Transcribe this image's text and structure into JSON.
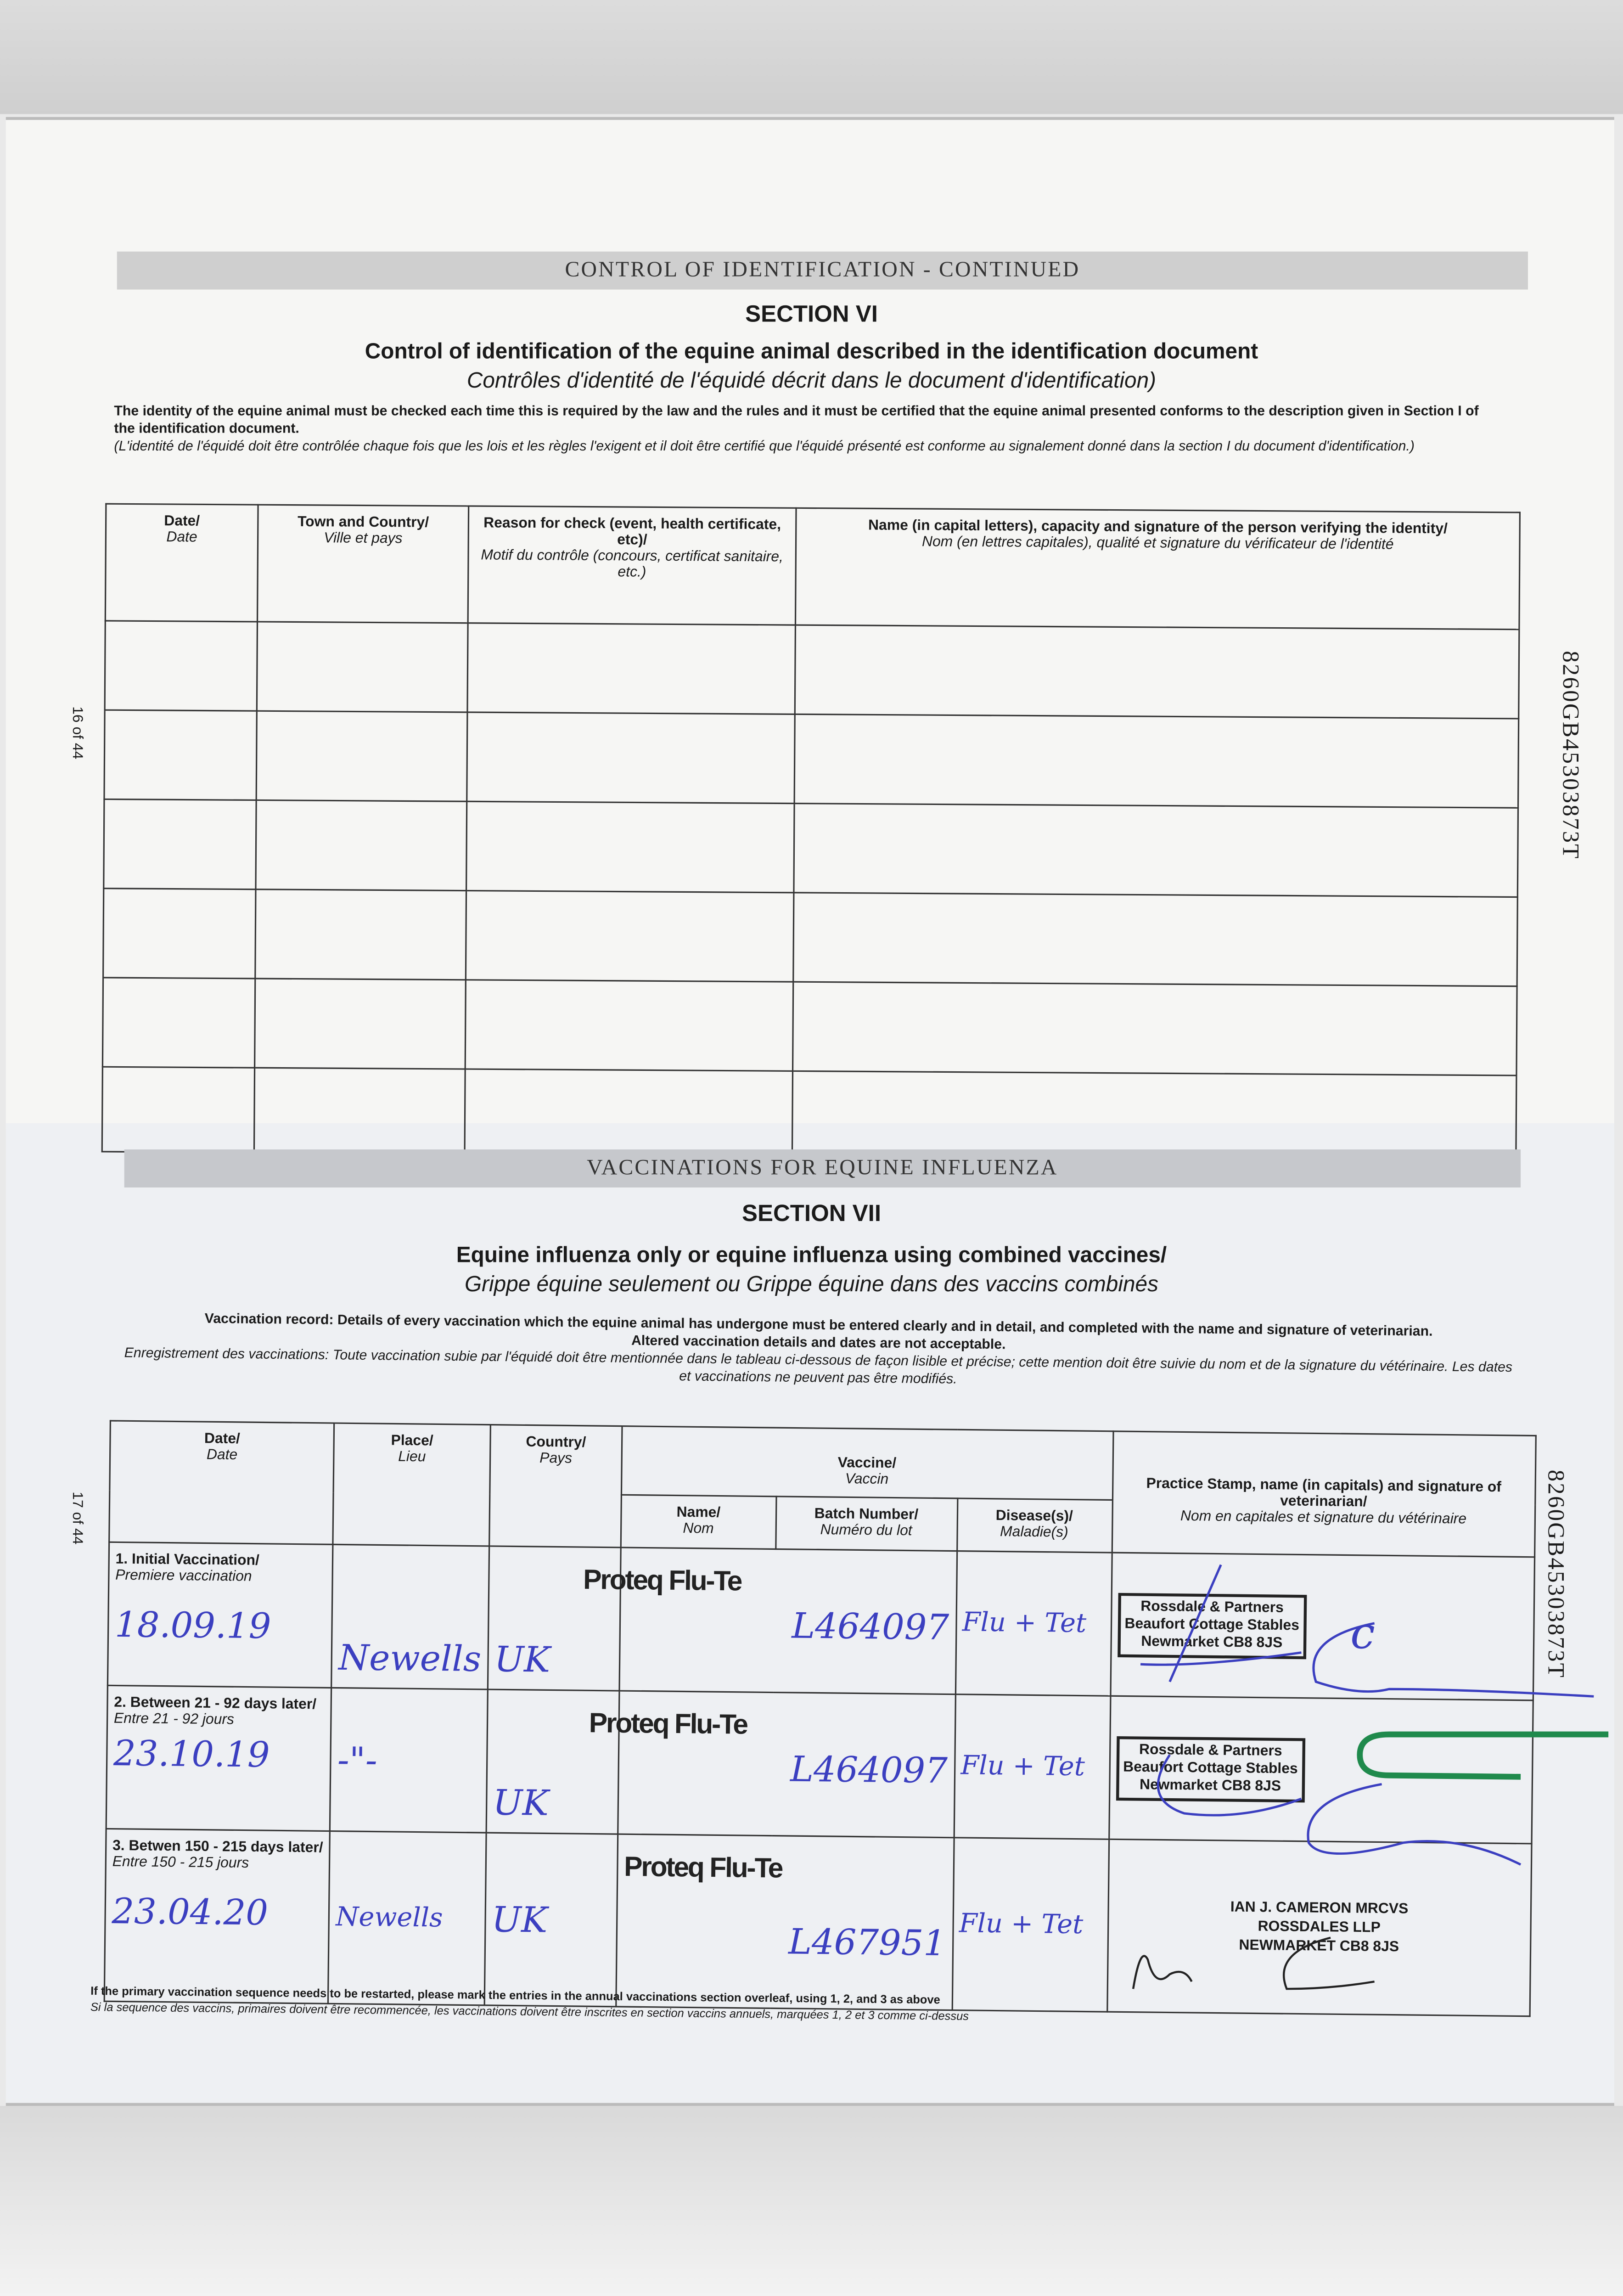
{
  "upper_page": {
    "banner": "CONTROL OF IDENTIFICATION - CONTINUED",
    "section": "SECTION VI",
    "title_en": "Control of identification of the equine animal described in the identification document",
    "title_fr": "Contrôles d'identité de l'équidé décrit dans le document d'identification)",
    "note_en": "The identity of the equine animal must be checked each time this is required by the law and the rules and it must be certified that the equine animal presented conforms to the description given in Section I of the identification document.",
    "note_fr": "(L'identité de l'équidé doit être contrôlée chaque fois que les lois et les règles l'exigent et il doit être certifié que l'équidé présenté est conforme au signalement donné dans la section I du document d'identification.)",
    "page_number": "16 of 44",
    "document_id": "8260GB45303873T",
    "table": {
      "headers": [
        {
          "en": "Date/",
          "fr": "Date"
        },
        {
          "en": "Town and Country/",
          "fr": "Ville et pays"
        },
        {
          "en": "Reason for check (event, health certificate, etc)/",
          "fr": "Motif du contrôle (concours, certificat sanitaire, etc.)"
        },
        {
          "en": "Name (in capital letters), capacity and signature of the person verifying the identity/",
          "fr": "Nom (en lettres capitales), qualité et signature du vérificateur de l'identité"
        }
      ],
      "empty_rows": 6
    }
  },
  "lower_page": {
    "banner": "VACCINATIONS FOR EQUINE INFLUENZA",
    "section": "SECTION VII",
    "title_en": "Equine influenza only or equine influenza using combined vaccines/",
    "title_fr": "Grippe équine seulement ou Grippe équine dans des vaccins combinés",
    "note_en": "Vaccination record: Details of every vaccination which the equine animal has undergone must be entered clearly and in detail, and completed with the name and signature of veterinarian.",
    "note_en2": "Altered vaccination details and dates are not acceptable.",
    "note_fr": "Enregistrement des vaccinations: Toute vaccination subie par l'équidé doit être mentionnée dans le tableau ci-dessous de façon lisible et précise; cette mention doit être suivie du nom et de la signature du vétérinaire. Les dates et vaccinations ne peuvent pas être modifiés.",
    "page_number": "17 of 44",
    "document_id": "8260GB45303873T",
    "headers": {
      "date": {
        "en": "Date/",
        "fr": "Date"
      },
      "place": {
        "en": "Place/",
        "fr": "Lieu"
      },
      "country": {
        "en": "Country/",
        "fr": "Pays"
      },
      "vaccine": {
        "en": "Vaccine/",
        "fr": "Vaccin"
      },
      "name": {
        "en": "Name/",
        "fr": "Nom"
      },
      "batch": {
        "en": "Batch Number/",
        "fr": "Numéro du lot"
      },
      "disease": {
        "en": "Disease(s)/",
        "fr": "Maladie(s)"
      },
      "stamp": {
        "en": "Practice Stamp, name (in capitals) and signature of veterinarian/",
        "fr": "Nom en capitales et signature du vétérinaire"
      }
    },
    "rows": [
      {
        "label_en": "1. Initial Vaccination/",
        "label_fr": "Premiere vaccination",
        "date": "18.09.19",
        "place": "Newells",
        "country": "UK",
        "vaccine": "Proteq Flu-Te",
        "batch": "L464097",
        "disease": "Flu + Tet",
        "stamp": [
          "Rossdale & Partners",
          "Beaufort Cottage Stables",
          "Newmarket CB8 8JS"
        ]
      },
      {
        "label_en": "2. Between 21 - 92 days later/",
        "label_fr": "Entre 21 - 92 jours",
        "date": "23.10.19",
        "place": "-\"-",
        "country": "UK",
        "vaccine": "Proteq Flu-Te",
        "batch": "L464097",
        "disease": "Flu + Tet",
        "stamp": [
          "Rossdale & Partners",
          "Beaufort Cottage Stables",
          "Newmarket CB8 8JS"
        ]
      },
      {
        "label_en": "3. Betwen 150 - 215 days later/",
        "label_fr": "Entre 150 - 215 jours",
        "date": "23.04.20",
        "place": "Newells",
        "country": "UK",
        "vaccine": "Proteq Flu-Te",
        "batch": "L467951",
        "disease": "Flu + Tet",
        "stamp": [
          "IAN J. CAMERON MRCVS",
          "ROSSDALES LLP",
          "NEWMARKET CB8 8JS"
        ]
      }
    ],
    "footnote_en": "If the primary vaccination sequence needs to be restarted, please mark the entries in the annual vaccinations section overleaf, using 1, 2, and 3 as above",
    "footnote_fr": "Si la sequence des vaccins, primaires doivent être recommencée, les vaccinations doivent être inscrites en section vaccins annuels, marquées 1, 2 et 3 comme ci-dessus"
  },
  "colors": {
    "ink": "#3b3fc0",
    "paperclip": "#1f8a4c",
    "banner": "#cfcfcf"
  }
}
